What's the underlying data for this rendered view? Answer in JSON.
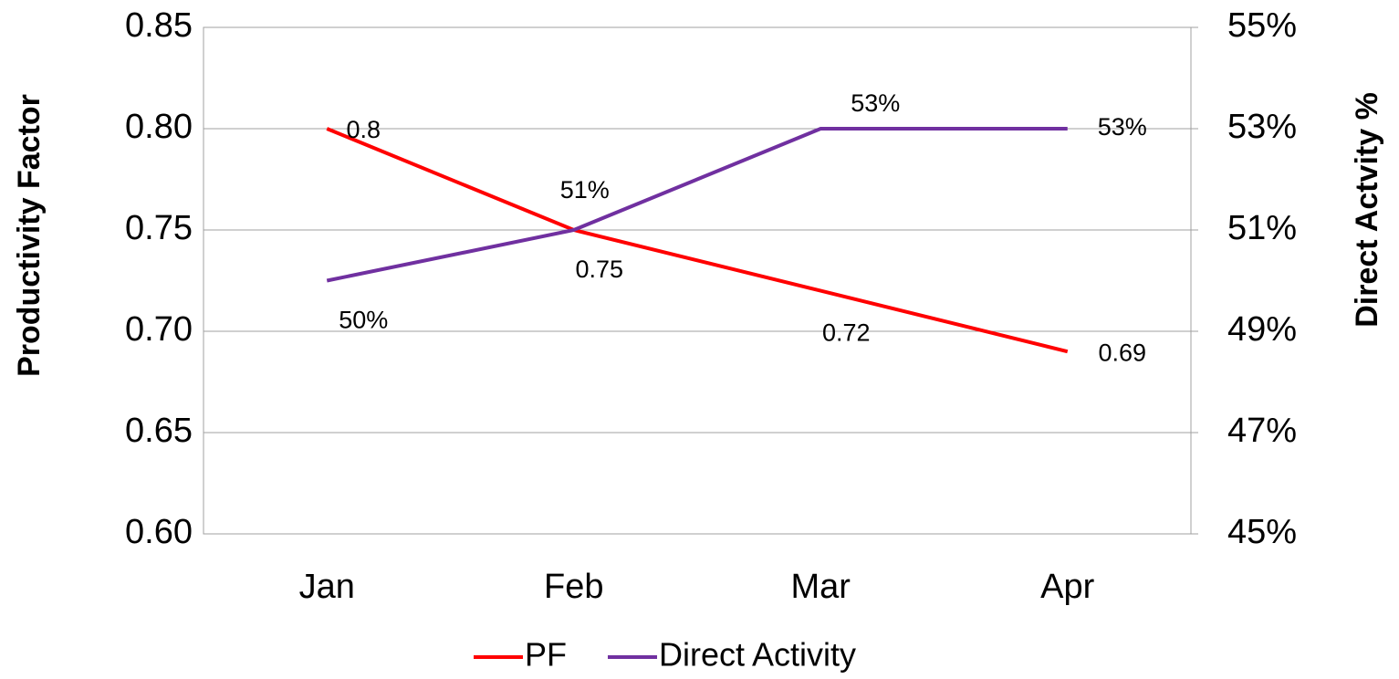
{
  "chart_data": {
    "type": "line",
    "y_label": "Productivity Factor",
    "y2_label": "Direct Actvity %",
    "categories": [
      "Jan",
      "Feb",
      "Mar",
      "Apr"
    ],
    "series": [
      {
        "name": "PF",
        "color": "#ff0000",
        "values": [
          0.8,
          0.75,
          0.72,
          0.69
        ]
      },
      {
        "name": "Direct Activity",
        "color": "#7030a0",
        "axis": "y2",
        "values": [
          50,
          51,
          53,
          53
        ],
        "value_labels": [
          "50%",
          "51%",
          "53%",
          "53%"
        ]
      }
    ],
    "ylim": [
      0.6,
      0.85
    ],
    "yticks": [
      {
        "value": 0.6,
        "label": "0.60"
      },
      {
        "value": 0.65,
        "label": "0.65"
      },
      {
        "value": 0.7,
        "label": "0.70"
      },
      {
        "value": 0.75,
        "label": "0.75"
      },
      {
        "value": 0.8,
        "label": "0.80"
      },
      {
        "value": 0.85,
        "label": "0.85"
      }
    ],
    "y2lim": [
      45,
      55
    ],
    "y2ticks": [
      {
        "value": 45,
        "label": "45%"
      },
      {
        "value": 47,
        "label": "47%"
      },
      {
        "value": 49,
        "label": "49%"
      },
      {
        "value": 51,
        "label": "51%"
      },
      {
        "value": 53,
        "label": "53%"
      },
      {
        "value": 55,
        "label": "55%"
      }
    ],
    "grid": true,
    "legend": "bottom"
  }
}
